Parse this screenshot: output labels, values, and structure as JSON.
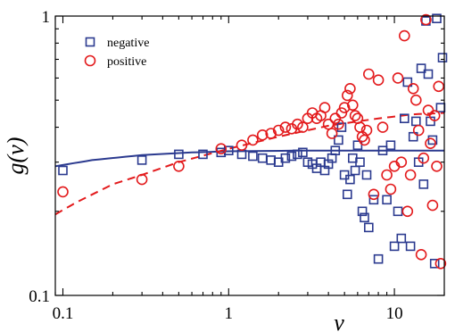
{
  "chart_data": {
    "type": "scatter",
    "xlabel": "v",
    "ylabel": "g(v)",
    "xscale": "log",
    "yscale": "log",
    "xlim": [
      0.09,
      20
    ],
    "ylim": [
      0.1,
      1
    ],
    "x_ticks": [
      {
        "value": 0.1,
        "label": "0.1"
      },
      {
        "value": 1,
        "label": "1"
      },
      {
        "value": 10,
        "label": "10"
      }
    ],
    "y_ticks": [
      {
        "value": 0.1,
        "label": "0.1"
      },
      {
        "value": 1,
        "label": "1"
      }
    ],
    "grid": false,
    "legend_position": "top-left",
    "series": [
      {
        "name": "negative",
        "marker": "square",
        "color": "#2b3a8f",
        "points": [
          [
            0.1,
            0.28
          ],
          [
            0.3,
            0.305
          ],
          [
            0.5,
            0.32
          ],
          [
            0.7,
            0.32
          ],
          [
            0.9,
            0.325
          ],
          [
            1.0,
            0.33
          ],
          [
            1.2,
            0.32
          ],
          [
            1.4,
            0.315
          ],
          [
            1.6,
            0.31
          ],
          [
            1.8,
            0.305
          ],
          [
            2.0,
            0.3
          ],
          [
            2.2,
            0.31
          ],
          [
            2.4,
            0.315
          ],
          [
            2.6,
            0.32
          ],
          [
            2.8,
            0.325
          ],
          [
            3.0,
            0.3
          ],
          [
            3.2,
            0.295
          ],
          [
            3.4,
            0.285
          ],
          [
            3.6,
            0.3
          ],
          [
            3.8,
            0.28
          ],
          [
            4.0,
            0.295
          ],
          [
            4.2,
            0.31
          ],
          [
            4.4,
            0.33
          ],
          [
            4.6,
            0.36
          ],
          [
            4.8,
            0.4
          ],
          [
            5.0,
            0.27
          ],
          [
            5.2,
            0.23
          ],
          [
            5.4,
            0.26
          ],
          [
            5.6,
            0.31
          ],
          [
            5.8,
            0.28
          ],
          [
            6.0,
            0.345
          ],
          [
            6.2,
            0.3
          ],
          [
            6.4,
            0.2
          ],
          [
            6.6,
            0.19
          ],
          [
            6.8,
            0.27
          ],
          [
            7.0,
            0.175
          ],
          [
            7.5,
            0.22
          ],
          [
            8.0,
            0.135
          ],
          [
            8.5,
            0.33
          ],
          [
            9.0,
            0.22
          ],
          [
            9.5,
            0.345
          ],
          [
            10.0,
            0.15
          ],
          [
            10.5,
            0.2
          ],
          [
            11.0,
            0.16
          ],
          [
            11.5,
            0.43
          ],
          [
            12.0,
            0.58
          ],
          [
            12.5,
            0.15
          ],
          [
            13.0,
            0.37
          ],
          [
            13.5,
            0.42
          ],
          [
            14.0,
            0.3
          ],
          [
            14.5,
            0.65
          ],
          [
            15.0,
            0.25
          ],
          [
            15.5,
            0.96
          ],
          [
            16.0,
            0.62
          ],
          [
            16.5,
            0.42
          ],
          [
            17.0,
            0.36
          ],
          [
            17.5,
            0.13
          ],
          [
            18.0,
            0.98
          ],
          [
            19.0,
            0.47
          ],
          [
            19.5,
            0.71
          ]
        ]
      },
      {
        "name": "positive",
        "marker": "circle",
        "color": "#e31a1c",
        "points": [
          [
            0.1,
            0.235
          ],
          [
            0.3,
            0.26
          ],
          [
            0.5,
            0.29
          ],
          [
            0.9,
            0.335
          ],
          [
            1.2,
            0.345
          ],
          [
            1.4,
            0.36
          ],
          [
            1.6,
            0.375
          ],
          [
            1.8,
            0.38
          ],
          [
            2.0,
            0.39
          ],
          [
            2.2,
            0.4
          ],
          [
            2.4,
            0.395
          ],
          [
            2.6,
            0.41
          ],
          [
            2.8,
            0.4
          ],
          [
            3.0,
            0.43
          ],
          [
            3.2,
            0.45
          ],
          [
            3.4,
            0.43
          ],
          [
            3.6,
            0.44
          ],
          [
            3.8,
            0.47
          ],
          [
            4.0,
            0.41
          ],
          [
            4.2,
            0.38
          ],
          [
            4.4,
            0.43
          ],
          [
            4.6,
            0.41
          ],
          [
            4.8,
            0.45
          ],
          [
            5.0,
            0.47
          ],
          [
            5.2,
            0.52
          ],
          [
            5.4,
            0.55
          ],
          [
            5.6,
            0.48
          ],
          [
            5.8,
            0.44
          ],
          [
            6.0,
            0.43
          ],
          [
            6.2,
            0.4
          ],
          [
            6.4,
            0.37
          ],
          [
            6.6,
            0.36
          ],
          [
            6.8,
            0.39
          ],
          [
            7.0,
            0.62
          ],
          [
            7.5,
            0.23
          ],
          [
            8.0,
            0.59
          ],
          [
            8.5,
            0.4
          ],
          [
            9.0,
            0.27
          ],
          [
            9.5,
            0.24
          ],
          [
            10.0,
            0.29
          ],
          [
            10.5,
            0.6
          ],
          [
            11.0,
            0.3
          ],
          [
            11.5,
            0.85
          ],
          [
            12.0,
            0.2
          ],
          [
            12.5,
            0.27
          ],
          [
            13.0,
            0.55
          ],
          [
            13.5,
            0.5
          ],
          [
            14.0,
            0.39
          ],
          [
            14.5,
            0.14
          ],
          [
            15.0,
            0.31
          ],
          [
            15.5,
            0.97
          ],
          [
            16.0,
            0.46
          ],
          [
            16.5,
            0.35
          ],
          [
            17.0,
            0.21
          ],
          [
            17.5,
            0.44
          ],
          [
            18.0,
            0.29
          ],
          [
            18.5,
            0.56
          ],
          [
            19.0,
            0.13
          ]
        ]
      }
    ],
    "fit_curves": [
      {
        "series": "negative",
        "style": "solid",
        "color": "#2b3a8f",
        "points": [
          [
            0.09,
            0.29
          ],
          [
            0.15,
            0.305
          ],
          [
            0.3,
            0.318
          ],
          [
            0.6,
            0.325
          ],
          [
            1,
            0.328
          ],
          [
            3,
            0.33
          ],
          [
            10,
            0.33
          ],
          [
            20,
            0.33
          ]
        ]
      },
      {
        "series": "positive",
        "style": "dashed",
        "color": "#e31a1c",
        "points": [
          [
            0.09,
            0.195
          ],
          [
            0.12,
            0.215
          ],
          [
            0.2,
            0.25
          ],
          [
            0.3,
            0.27
          ],
          [
            0.5,
            0.3
          ],
          [
            1,
            0.335
          ],
          [
            2,
            0.37
          ],
          [
            4,
            0.405
          ],
          [
            8,
            0.43
          ],
          [
            13,
            0.445
          ],
          [
            20,
            0.45
          ]
        ]
      }
    ]
  }
}
